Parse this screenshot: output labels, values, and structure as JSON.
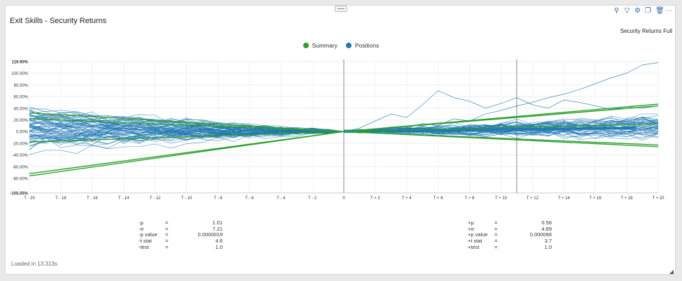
{
  "panel": {
    "title": "Exit Skills - Security Returns",
    "subtitle": "Security Returns Full",
    "loaded_text": "Loaded in 13.313s"
  },
  "toolbar": [
    "search-icon",
    "filter-icon",
    "gear-icon",
    "copy-icon",
    "trash-icon",
    "more-icon"
  ],
  "chart_data": {
    "type": "line",
    "legend": [
      {
        "name": "Summary",
        "color": "#2ca02c"
      },
      {
        "name": "Positions",
        "color": "#1f77b4"
      }
    ],
    "legend_position": "top-center",
    "x_tick_labels": [
      "T - 20",
      "T - 18",
      "T - 16",
      "T - 14",
      "T - 12",
      "T - 10",
      "T - 8",
      "T - 6",
      "T - 4",
      "T - 2",
      "0",
      "T + 2",
      "T + 4",
      "T + 6",
      "T + 8",
      "T + 10",
      "T + 12",
      "T + 14",
      "T + 16",
      "T + 18",
      "T + 20"
    ],
    "y_tick_labels": [
      "119.90%",
      "100.00%",
      "80.00%",
      "60.00%",
      "40.00%",
      "20.00%",
      "0.00%",
      "-20.00%",
      "-40.00%",
      "-60.00%",
      "-80.00%",
      "-105.05%"
    ],
    "xlim": [
      -20,
      20
    ],
    "ylim": [
      -105.05,
      119.9
    ],
    "grid": true,
    "vertical_markers": [
      0,
      11
    ],
    "summary_series": [
      {
        "x": [
          -20,
          0
        ],
        "y": [
          32,
          0
        ]
      },
      {
        "x": [
          -20,
          0
        ],
        "y": [
          22,
          0
        ]
      },
      {
        "x": [
          -20,
          0
        ],
        "y": [
          -18,
          0
        ]
      },
      {
        "x": [
          -20,
          0
        ],
        "y": [
          -72,
          0
        ]
      },
      {
        "x": [
          -20,
          0
        ],
        "y": [
          -76,
          0
        ]
      },
      {
        "x": [
          0,
          20
        ],
        "y": [
          0,
          47
        ]
      },
      {
        "x": [
          0,
          20
        ],
        "y": [
          0,
          44
        ]
      },
      {
        "x": [
          0,
          20
        ],
        "y": [
          0,
          13
        ]
      },
      {
        "x": [
          0,
          20
        ],
        "y": [
          0,
          -23
        ]
      },
      {
        "x": [
          0,
          20
        ],
        "y": [
          0,
          -26
        ]
      }
    ],
    "positions_envelope_left": [
      -78,
      58
    ],
    "positions_envelope_right": [
      -30,
      115
    ],
    "positions_mean_right": 6
  },
  "stats_left": [
    {
      "key": "-μ",
      "eq": "=",
      "value": "1.01"
    },
    {
      "key": "-σ",
      "eq": "=",
      "value": "7.21"
    },
    {
      "key": "-p value",
      "eq": "=",
      "value": "0.0000019"
    },
    {
      "key": "-t stat",
      "eq": "=",
      "value": "4.6"
    },
    {
      "key": "-test",
      "eq": "=",
      "value": "1.0"
    }
  ],
  "stats_right": [
    {
      "key": "+μ",
      "eq": "=",
      "value": "0.56"
    },
    {
      "key": "+σ",
      "eq": "=",
      "value": "4.89"
    },
    {
      "key": "+p value",
      "eq": "=",
      "value": "0.000096"
    },
    {
      "key": "+t stat",
      "eq": "=",
      "value": "3.7"
    },
    {
      "key": "+test",
      "eq": "=",
      "value": "1.0"
    }
  ]
}
